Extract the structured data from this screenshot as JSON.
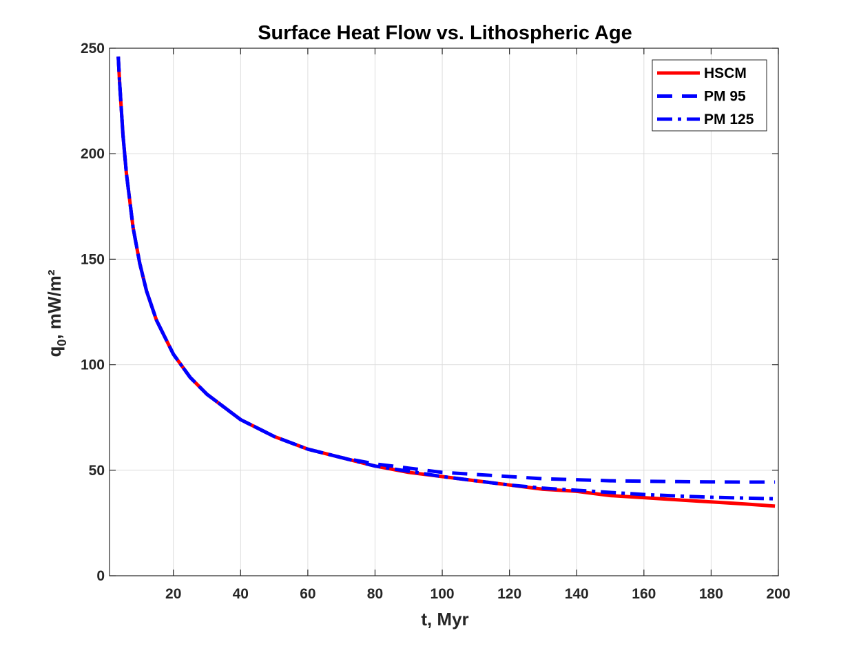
{
  "chart_data": {
    "type": "line",
    "title": "Surface Heat Flow vs. Lithospheric Age",
    "xlabel": "t, Myr",
    "ylabel_main": "q",
    "ylabel_sub": "0",
    "ylabel_rest": ", mW/m²",
    "xlim": [
      1,
      200
    ],
    "ylim": [
      0,
      250
    ],
    "xticks": [
      20,
      40,
      60,
      80,
      100,
      120,
      140,
      160,
      180,
      200
    ],
    "yticks": [
      0,
      50,
      100,
      150,
      200,
      250
    ],
    "grid": true,
    "legend_position": "top-right",
    "series": [
      {
        "name": "HSCM",
        "color": "#ff0000",
        "style": "solid",
        "x": [
          3.6,
          4,
          5,
          6,
          8,
          10,
          12,
          15,
          20,
          25,
          30,
          40,
          50,
          60,
          70,
          80,
          90,
          100,
          110,
          120,
          130,
          140,
          150,
          160,
          170,
          180,
          190,
          199
        ],
        "y": [
          246,
          234,
          209,
          191,
          165,
          148,
          135,
          121,
          105,
          94,
          86,
          74,
          66,
          60,
          56,
          52,
          49,
          47,
          45,
          43,
          41,
          40,
          38,
          37,
          36,
          35,
          34,
          33
        ]
      },
      {
        "name": "PM 95",
        "color": "#0000ff",
        "style": "dashed",
        "x": [
          3.6,
          4,
          5,
          6,
          8,
          10,
          12,
          15,
          20,
          25,
          30,
          40,
          50,
          60,
          70,
          80,
          90,
          100,
          110,
          120,
          130,
          140,
          150,
          160,
          170,
          180,
          190,
          199
        ],
        "y": [
          246,
          234,
          209,
          191,
          165,
          148,
          135,
          121,
          105,
          94,
          86,
          74,
          66,
          60,
          56,
          53,
          51,
          49,
          48,
          47,
          46,
          45.5,
          45,
          44.8,
          44.6,
          44.5,
          44.4,
          44.4
        ]
      },
      {
        "name": "PM 125",
        "color": "#0000ff",
        "style": "dashdot",
        "x": [
          3.6,
          4,
          5,
          6,
          8,
          10,
          12,
          15,
          20,
          25,
          30,
          40,
          50,
          60,
          70,
          80,
          90,
          100,
          110,
          120,
          130,
          140,
          150,
          160,
          170,
          180,
          190,
          199
        ],
        "y": [
          246,
          234,
          209,
          191,
          165,
          148,
          135,
          121,
          105,
          94,
          86,
          74,
          66,
          60,
          56,
          52,
          49.5,
          47,
          45,
          43,
          41.5,
          40.5,
          39.5,
          38.5,
          37.8,
          37.2,
          36.8,
          36.5
        ]
      }
    ]
  }
}
